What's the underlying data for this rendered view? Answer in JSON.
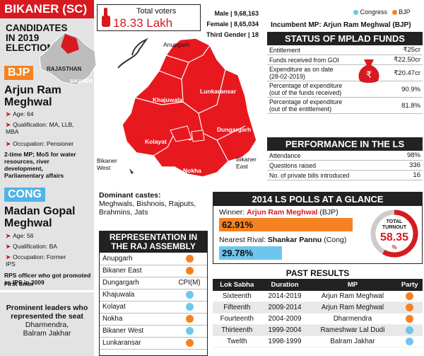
{
  "header": {
    "title": "BIKANER (SC)"
  },
  "left": {
    "candidates_heading": "CANDIDATES IN 2019 ELECTION",
    "bjp": {
      "party": "BJP",
      "name": "Arjun Ram Meghwal",
      "age": "Age: 64",
      "qualification": "Qualification: MA, LLB, MBA",
      "occupation": "Occupation: Pensioner",
      "note": "2-time MP; MoS for water resources, river development, Parliamentary affairs"
    },
    "cong": {
      "party": "CONG",
      "name": "Madan Gopal Meghwal",
      "age": "Age: 56",
      "qualification": "Qualification: BA",
      "occupation": "Occupation: Former IPS",
      "note": "RPS officer who got promoted as IPS in 2009",
      "note2": "First timer"
    },
    "prominent": {
      "heading": "Prominent leaders who represented the seat",
      "names": "Dharmendra, Balram Jakhar"
    }
  },
  "voters": {
    "label": "Total voters",
    "value": "18.33 Lakh",
    "male": "Male | 9,68,163",
    "female": "Female | 8,65,034",
    "third": "Third Gender | 18"
  },
  "map": {
    "state_label": "RAJASTHAN",
    "district_label": "BIKANER",
    "labels": {
      "anupgarh": "Anupgarh",
      "khajuwala": "Khajuwala",
      "lunkaransar": "Lunkaransar",
      "dungargarh": "Dungargarh",
      "kolayat": "Kolayat",
      "nokha": "Nokha",
      "bikaner_west": "Bikaner West",
      "bikaner_east": "Bikaner East"
    }
  },
  "castes": {
    "heading": "Dominant castes:",
    "list": "Meghwals, Bishnois, Rajputs, Brahmins, Jats"
  },
  "legend": {
    "congress": "Congress",
    "bjp": "BJP",
    "congress_color": "#6ec6ec",
    "bjp_color": "#f58220"
  },
  "incumbent": "Incumbent MP: Arjun Ram Meghwal (BJP)",
  "mplad": {
    "heading": "STATUS OF MPLAD FUNDS",
    "rows": [
      {
        "label": "Entitlement",
        "value": "₹25cr"
      },
      {
        "label": "Funds received from GOI",
        "value": "₹22.50cr"
      },
      {
        "label": "Expenditure as on date (28-02-2019)",
        "value": "₹20.47cr"
      },
      {
        "label": "Percentage of expenditure (out of the funds received)",
        "value": "90.9%"
      },
      {
        "label": "Percentage of expenditure (out of the entitlement)",
        "value": "81.8%"
      }
    ]
  },
  "performance": {
    "heading": "PERFORMANCE IN THE LS",
    "rows": [
      {
        "label": "Attendance",
        "value": "98%"
      },
      {
        "label": "Questions raised",
        "value": "336"
      },
      {
        "label": "No. of private bills introduced",
        "value": "16"
      }
    ]
  },
  "polls2014": {
    "heading": "2014 LS POLLS AT A GLANCE",
    "winner_prefix": "Winner: ",
    "winner_name": "Arjun Ram Meghwal",
    "winner_party": " (BJP)",
    "winner_pct": "62.91%",
    "winner_share": 62.91,
    "rival_prefix": "Nearest Rival: ",
    "rival_name": "Shankar Pannu",
    "rival_party": " (Cong)",
    "rival_pct": "29.78%",
    "rival_share": 29.78,
    "turnout_label": "TOTAL TURNOUT",
    "turnout_value": "58.35",
    "turnout_unit": "%",
    "turnout": 58.35
  },
  "assembly": {
    "heading": "REPRESENTATION IN THE RAJ ASSEMBLY",
    "rows": [
      {
        "name": "Anupgarh",
        "party": "bjp",
        "text": ""
      },
      {
        "name": "Bikaner East",
        "party": "bjp",
        "text": ""
      },
      {
        "name": "Dungargarh",
        "party": "",
        "text": "CPI(M)"
      },
      {
        "name": "Khajuwala",
        "party": "cong",
        "text": ""
      },
      {
        "name": "Kolayat",
        "party": "cong",
        "text": ""
      },
      {
        "name": "Nokha",
        "party": "bjp",
        "text": ""
      },
      {
        "name": "Bikaner West",
        "party": "cong",
        "text": ""
      },
      {
        "name": "Lunkaransar",
        "party": "bjp",
        "text": ""
      }
    ]
  },
  "past": {
    "heading": "PAST RESULTS",
    "columns": [
      "Lok Sabha",
      "Duration",
      "MP",
      "Party"
    ],
    "rows": [
      {
        "ls": "Sixteenth",
        "duration": "2014-2019",
        "mp": "Arjun Ram Meghwal",
        "party": "bjp"
      },
      {
        "ls": "Fifteenth",
        "duration": "2009-2014",
        "mp": "Arjun Ram Meghwal",
        "party": "bjp"
      },
      {
        "ls": "Fourteenth",
        "duration": "2004-2009",
        "mp": "Dharmendra",
        "party": "bjp"
      },
      {
        "ls": "Thirteenth",
        "duration": "1999-2004",
        "mp": "Rameshwar Lal Dudi",
        "party": "cong"
      },
      {
        "ls": "Twelth",
        "duration": "1998-1999",
        "mp": "Balram Jakhar",
        "party": "cong"
      }
    ]
  }
}
